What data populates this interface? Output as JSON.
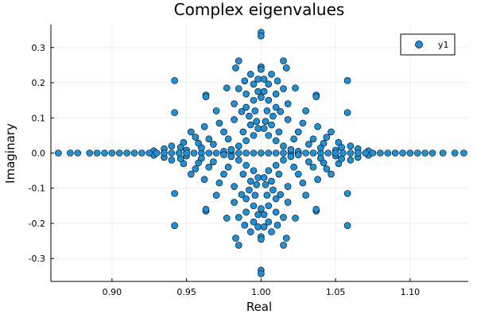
{
  "chart_data": {
    "type": "scatter",
    "title": "Complex eigenvalues",
    "xlabel": "Real",
    "ylabel": "Imaginary",
    "xlim": [
      0.859,
      1.139
    ],
    "ylim": [
      -0.365,
      0.365
    ],
    "x_ticks": [
      0.9,
      0.95,
      1.0,
      1.05,
      1.1
    ],
    "x_tick_labels": [
      "0.90",
      "0.95",
      "1.00",
      "1.05",
      "1.10"
    ],
    "y_ticks": [
      -0.3,
      -0.2,
      -0.1,
      0.0,
      0.1,
      0.2,
      0.3
    ],
    "y_tick_labels": [
      "-0.3",
      "-0.2",
      "-0.1",
      "0.0",
      "0.1",
      "0.2",
      "0.3"
    ],
    "grid": true,
    "legend": {
      "position": "top-right",
      "entries": [
        "y1"
      ]
    },
    "series": [
      {
        "name": "y1",
        "color": "#1f8fd6",
        "points": [
          [
            1.0,
            0.343
          ],
          [
            1.0,
            0.333
          ],
          [
            1.0,
            -0.333
          ],
          [
            1.0,
            -0.343
          ],
          [
            0.985,
            0.262
          ],
          [
            1.015,
            0.262
          ],
          [
            0.985,
            -0.262
          ],
          [
            1.015,
            -0.262
          ],
          [
            1.0,
            0.245
          ],
          [
            1.0,
            0.238
          ],
          [
            1.0,
            -0.238
          ],
          [
            1.0,
            -0.245
          ],
          [
            0.983,
            0.242
          ],
          [
            1.017,
            0.242
          ],
          [
            0.983,
            -0.242
          ],
          [
            1.017,
            -0.242
          ],
          [
            0.942,
            0.206
          ],
          [
            1.058,
            0.206
          ],
          [
            0.942,
            -0.206
          ],
          [
            1.058,
            -0.206
          ],
          [
            0.993,
            0.224
          ],
          [
            1.007,
            0.224
          ],
          [
            0.993,
            -0.224
          ],
          [
            1.007,
            -0.224
          ],
          [
            0.989,
            0.205
          ],
          [
            1.011,
            0.205
          ],
          [
            0.989,
            -0.205
          ],
          [
            1.011,
            -0.205
          ],
          [
            0.995,
            0.196
          ],
          [
            1.005,
            0.196
          ],
          [
            0.995,
            -0.196
          ],
          [
            1.005,
            -0.196
          ],
          [
            0.998,
            0.21
          ],
          [
            1.002,
            0.21
          ],
          [
            0.998,
            -0.21
          ],
          [
            1.002,
            -0.21
          ],
          [
            0.977,
            0.185
          ],
          [
            1.023,
            0.185
          ],
          [
            0.977,
            -0.185
          ],
          [
            1.023,
            -0.185
          ],
          [
            0.985,
            0.183
          ],
          [
            1.015,
            0.183
          ],
          [
            0.985,
            -0.183
          ],
          [
            1.015,
            -0.183
          ],
          [
            0.963,
            0.165
          ],
          [
            1.037,
            0.165
          ],
          [
            0.963,
            -0.165
          ],
          [
            1.037,
            -0.165
          ],
          [
            0.963,
            0.16
          ],
          [
            1.037,
            0.16
          ],
          [
            0.963,
            -0.16
          ],
          [
            1.037,
            -0.16
          ],
          [
            0.998,
            0.175
          ],
          [
            1.002,
            0.175
          ],
          [
            0.998,
            -0.175
          ],
          [
            1.002,
            -0.175
          ],
          [
            0.99,
            0.168
          ],
          [
            1.01,
            0.168
          ],
          [
            0.99,
            -0.168
          ],
          [
            1.01,
            -0.168
          ],
          [
            0.942,
            0.115
          ],
          [
            1.058,
            0.115
          ],
          [
            0.942,
            -0.115
          ],
          [
            1.058,
            -0.115
          ],
          [
            0.97,
            0.12
          ],
          [
            1.03,
            0.12
          ],
          [
            0.97,
            -0.12
          ],
          [
            1.03,
            -0.12
          ],
          [
            0.99,
            0.13
          ],
          [
            1.01,
            0.13
          ],
          [
            0.99,
            -0.13
          ],
          [
            1.01,
            -0.13
          ],
          [
            0.982,
            0.14
          ],
          [
            1.018,
            0.14
          ],
          [
            0.982,
            -0.14
          ],
          [
            1.018,
            -0.14
          ],
          [
            0.995,
            0.15
          ],
          [
            1.005,
            0.15
          ],
          [
            0.995,
            -0.15
          ],
          [
            1.005,
            -0.15
          ],
          [
            1.0,
            0.158
          ],
          [
            1.0,
            -0.158
          ],
          [
            0.953,
            0.06
          ],
          [
            1.047,
            0.06
          ],
          [
            0.953,
            -0.06
          ],
          [
            1.047,
            -0.06
          ],
          [
            0.956,
            0.045
          ],
          [
            1.044,
            0.045
          ],
          [
            0.956,
            -0.045
          ],
          [
            1.044,
            -0.045
          ],
          [
            0.948,
            0.03
          ],
          [
            1.052,
            0.03
          ],
          [
            0.948,
            -0.03
          ],
          [
            1.052,
            -0.03
          ],
          [
            0.962,
            0.075
          ],
          [
            1.038,
            0.075
          ],
          [
            0.962,
            -0.075
          ],
          [
            1.038,
            -0.075
          ],
          [
            0.972,
            0.085
          ],
          [
            1.028,
            0.085
          ],
          [
            0.972,
            -0.085
          ],
          [
            1.028,
            -0.085
          ],
          [
            0.982,
            0.095
          ],
          [
            1.018,
            0.095
          ],
          [
            0.982,
            -0.095
          ],
          [
            1.018,
            -0.095
          ],
          [
            0.992,
            0.105
          ],
          [
            1.008,
            0.105
          ],
          [
            0.992,
            -0.105
          ],
          [
            1.008,
            -0.105
          ],
          [
            0.987,
            0.118
          ],
          [
            1.013,
            0.118
          ],
          [
            0.987,
            -0.118
          ],
          [
            1.013,
            -0.118
          ],
          [
            0.935,
            0.012
          ],
          [
            1.065,
            0.012
          ],
          [
            0.935,
            -0.012
          ],
          [
            1.065,
            -0.012
          ],
          [
            0.928,
            0.006
          ],
          [
            1.072,
            0.006
          ],
          [
            0.928,
            -0.006
          ],
          [
            1.072,
            -0.006
          ],
          [
            0.94,
            0.02
          ],
          [
            1.06,
            0.02
          ],
          [
            0.94,
            -0.02
          ],
          [
            1.06,
            -0.02
          ],
          [
            0.946,
            0.016
          ],
          [
            1.054,
            0.016
          ],
          [
            0.946,
            -0.016
          ],
          [
            1.054,
            -0.016
          ],
          [
            0.95,
            0.008
          ],
          [
            1.05,
            0.008
          ],
          [
            0.95,
            -0.008
          ],
          [
            1.05,
            -0.008
          ],
          [
            0.864,
            0.0
          ],
          [
            0.872,
            0.0
          ],
          [
            0.877,
            0.0
          ],
          [
            0.885,
            0.0
          ],
          [
            0.89,
            0.0
          ],
          [
            0.895,
            0.0
          ],
          [
            0.9,
            0.0
          ],
          [
            0.905,
            0.0
          ],
          [
            0.91,
            0.0
          ],
          [
            0.915,
            0.0
          ],
          [
            0.92,
            0.0
          ],
          [
            0.925,
            0.0
          ],
          [
            0.93,
            0.0
          ],
          [
            0.935,
            0.0
          ],
          [
            0.94,
            0.0
          ],
          [
            0.945,
            0.0
          ],
          [
            0.95,
            0.0
          ],
          [
            0.955,
            0.0
          ],
          [
            0.96,
            0.0
          ],
          [
            0.965,
            0.0
          ],
          [
            0.97,
            0.0
          ],
          [
            0.975,
            0.0
          ],
          [
            0.98,
            0.0
          ],
          [
            0.985,
            0.0
          ],
          [
            0.99,
            0.0
          ],
          [
            0.995,
            0.0
          ],
          [
            1.0,
            0.0
          ],
          [
            1.005,
            0.0
          ],
          [
            1.01,
            0.0
          ],
          [
            1.015,
            0.0
          ],
          [
            1.02,
            0.0
          ],
          [
            1.025,
            0.0
          ],
          [
            1.03,
            0.0
          ],
          [
            1.035,
            0.0
          ],
          [
            1.04,
            0.0
          ],
          [
            1.045,
            0.0
          ],
          [
            1.05,
            0.0
          ],
          [
            1.055,
            0.0
          ],
          [
            1.06,
            0.0
          ],
          [
            1.065,
            0.0
          ],
          [
            1.07,
            0.0
          ],
          [
            1.075,
            0.0
          ],
          [
            1.08,
            0.0
          ],
          [
            1.085,
            0.0
          ],
          [
            1.09,
            0.0
          ],
          [
            1.095,
            0.0
          ],
          [
            1.1,
            0.0
          ],
          [
            1.105,
            0.0
          ],
          [
            1.11,
            0.0
          ],
          [
            1.115,
            0.0
          ],
          [
            1.122,
            0.0
          ],
          [
            1.13,
            0.0
          ],
          [
            1.136,
            0.0
          ],
          [
            0.975,
            0.005
          ],
          [
            1.025,
            0.005
          ],
          [
            0.975,
            -0.005
          ],
          [
            1.025,
            -0.005
          ],
          [
            0.98,
            0.01
          ],
          [
            1.02,
            0.01
          ],
          [
            0.98,
            -0.01
          ],
          [
            1.02,
            -0.01
          ],
          [
            0.985,
            0.02
          ],
          [
            1.015,
            0.02
          ],
          [
            0.985,
            -0.02
          ],
          [
            1.015,
            -0.02
          ],
          [
            0.99,
            0.035
          ],
          [
            1.01,
            0.035
          ],
          [
            0.99,
            -0.035
          ],
          [
            1.01,
            -0.035
          ],
          [
            0.995,
            0.05
          ],
          [
            1.005,
            0.05
          ],
          [
            0.995,
            -0.05
          ],
          [
            1.005,
            -0.05
          ],
          [
            0.998,
            0.07
          ],
          [
            1.002,
            0.07
          ],
          [
            0.998,
            -0.07
          ],
          [
            1.002,
            -0.07
          ],
          [
            0.993,
            0.08
          ],
          [
            1.007,
            0.08
          ],
          [
            0.993,
            -0.08
          ],
          [
            1.007,
            -0.08
          ],
          [
            0.988,
            0.06
          ],
          [
            1.012,
            0.06
          ],
          [
            0.988,
            -0.06
          ],
          [
            1.012,
            -0.06
          ],
          [
            0.978,
            0.04
          ],
          [
            1.022,
            0.04
          ],
          [
            0.978,
            -0.04
          ],
          [
            1.022,
            -0.04
          ],
          [
            0.968,
            0.025
          ],
          [
            1.032,
            0.025
          ],
          [
            0.968,
            -0.025
          ],
          [
            1.032,
            -0.025
          ],
          [
            0.96,
            0.015
          ],
          [
            1.04,
            0.015
          ],
          [
            0.96,
            -0.015
          ],
          [
            1.04,
            -0.015
          ],
          [
            0.997,
            0.09
          ],
          [
            1.003,
            0.09
          ],
          [
            0.997,
            -0.09
          ],
          [
            1.003,
            -0.09
          ],
          [
            0.996,
            0.12
          ],
          [
            1.004,
            0.12
          ],
          [
            0.996,
            -0.12
          ],
          [
            1.004,
            -0.12
          ],
          [
            0.975,
            0.06
          ],
          [
            1.025,
            0.06
          ],
          [
            0.975,
            -0.06
          ],
          [
            1.025,
            -0.06
          ],
          [
            0.965,
            0.04
          ],
          [
            1.035,
            0.04
          ],
          [
            0.965,
            -0.04
          ],
          [
            1.035,
            -0.04
          ],
          [
            0.958,
            0.028
          ],
          [
            1.042,
            0.028
          ],
          [
            0.958,
            -0.028
          ],
          [
            1.042,
            -0.028
          ]
        ]
      }
    ]
  }
}
